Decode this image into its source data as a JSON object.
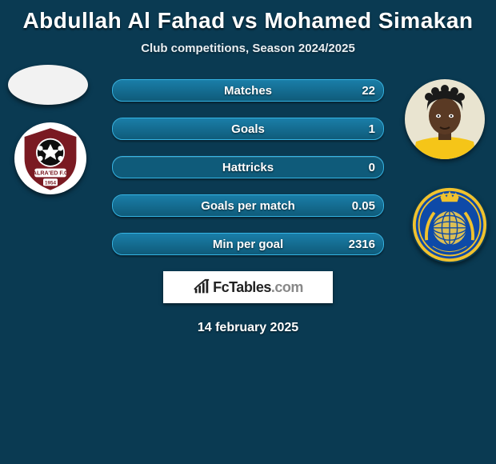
{
  "header": {
    "title": "Abdullah Al Fahad vs Mohamed Simakan",
    "subtitle": "Club competitions, Season 2024/2025"
  },
  "stats": {
    "rows": [
      {
        "label": "Matches",
        "value_text": "22",
        "fill_pct": 100
      },
      {
        "label": "Goals",
        "value_text": "1",
        "fill_pct": 100
      },
      {
        "label": "Hattricks",
        "value_text": "0",
        "fill_pct": 0
      },
      {
        "label": "Goals per match",
        "value_text": "0.05",
        "fill_pct": 100
      },
      {
        "label": "Min per goal",
        "value_text": "2316",
        "fill_pct": 100
      }
    ],
    "bar_colors": {
      "track": "#0f5b7a",
      "border": "#34b4e4",
      "fill_gradient_top": "#1a7ea8",
      "fill_gradient_bottom": "#0f5b7a"
    }
  },
  "avatars": {
    "left": {
      "name": "player-left-avatar",
      "bg": "#f2f2f2"
    },
    "right": {
      "name": "player-right-avatar",
      "skin": "#5a3a24",
      "hair": "#1a1a1a",
      "shirt": "#f5c518"
    }
  },
  "clubs": {
    "left": {
      "name": "club-left-badge",
      "outer": "#ffffff",
      "shield": "#7a1a22",
      "ball": "#0e0e0e",
      "text": "ALRA'ED F.C",
      "year": "1954"
    },
    "right": {
      "name": "club-right-badge",
      "outer_ring": "#f0c22e",
      "inner": "#0e4aa8",
      "globe": "#dcbf55"
    }
  },
  "brand": {
    "text_dark": "FcTables",
    "text_light": ".com",
    "icon_color": "#222222"
  },
  "footer": {
    "date": "14 february 2025"
  },
  "theme": {
    "background": "#0a3a52",
    "text": "#ffffff"
  }
}
